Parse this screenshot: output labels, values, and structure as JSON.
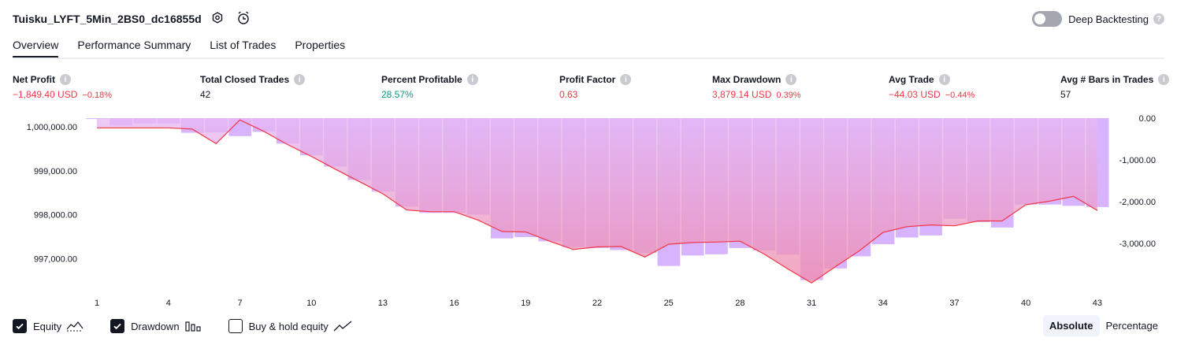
{
  "header": {
    "strategy_title": "Tuisku_LYFT_5Min_2BS0_dc16855d",
    "settings_icon": "settings-icon",
    "alert_icon": "alarm-add-icon",
    "deep_backtesting_label": "Deep Backtesting",
    "deep_backtesting_enabled": false
  },
  "tabs": [
    {
      "label": "Overview",
      "active": true
    },
    {
      "label": "Performance Summary",
      "active": false
    },
    {
      "label": "List of Trades",
      "active": false
    },
    {
      "label": "Properties",
      "active": false
    }
  ],
  "metrics": {
    "net_profit": {
      "label": "Net Profit",
      "value": "−1,849.40 USD",
      "pct": "−0.18%"
    },
    "total_closed_trades": {
      "label": "Total Closed Trades",
      "value": "42"
    },
    "percent_profitable": {
      "label": "Percent Profitable",
      "value": "28.57%"
    },
    "profit_factor": {
      "label": "Profit Factor",
      "value": "0.63"
    },
    "max_drawdown": {
      "label": "Max Drawdown",
      "value": "3,879.14 USD",
      "pct": "0.39%"
    },
    "avg_trade": {
      "label": "Avg Trade",
      "value": "−44.03 USD",
      "pct": "−0.44%"
    },
    "avg_bars": {
      "label": "Avg # Bars in Trades",
      "value": "57"
    }
  },
  "colors": {
    "negative": "#f23645",
    "positive": "#089981",
    "equity_line": "#f23645",
    "drawdown_bar": "#d1a7ff",
    "equity_fill_top": "#e6b8f5",
    "equity_fill_bottom": "#f08aa8"
  },
  "chart_data": {
    "type": "area",
    "x_ticks": [
      1,
      4,
      7,
      10,
      13,
      16,
      19,
      22,
      25,
      28,
      31,
      34,
      37,
      40,
      43
    ],
    "left_axis": {
      "ticks": [
        "1,000,000.00",
        "999,000.00",
        "998,000.00",
        "997,000.00"
      ],
      "ylim": [
        996400,
        1000200
      ]
    },
    "right_axis": {
      "ticks": [
        "0.00",
        "-1,000.00",
        "-2,000.00",
        "-3,000.00"
      ],
      "ylim": [
        -4000,
        0
      ]
    },
    "series": [
      {
        "name": "Equity",
        "x": [
          1,
          2,
          3,
          4,
          5,
          6,
          7,
          8,
          9,
          10,
          11,
          12,
          13,
          14,
          15,
          16,
          17,
          18,
          19,
          20,
          21,
          22,
          23,
          24,
          25,
          26,
          27,
          28,
          29,
          30,
          31,
          32,
          33,
          34,
          35,
          36,
          37,
          38,
          39,
          40,
          41,
          42,
          43
        ],
        "values": [
          999980,
          999980,
          999980,
          999980,
          999950,
          999620,
          1000160,
          999900,
          999600,
          999330,
          999040,
          998760,
          998480,
          998110,
          998070,
          998070,
          997880,
          997620,
          997610,
          997400,
          997210,
          997270,
          997280,
          997040,
          997330,
          997370,
          997380,
          997400,
          997110,
          996770,
          996450,
          996820,
          997180,
          997600,
          997730,
          997770,
          997750,
          997860,
          997860,
          998230,
          998310,
          998420,
          998100
        ],
        "color": "#f23645"
      },
      {
        "name": "Drawdown",
        "x": [
          1,
          2,
          3,
          4,
          5,
          6,
          7,
          8,
          9,
          10,
          11,
          12,
          13,
          14,
          15,
          16,
          17,
          18,
          19,
          20,
          21,
          22,
          23,
          24,
          25,
          26,
          27,
          28,
          29,
          30,
          31,
          32,
          33,
          34,
          35,
          36,
          37,
          38,
          39,
          40,
          41,
          42,
          43
        ],
        "values": [
          -20,
          -180,
          -130,
          -130,
          -350,
          -340,
          -430,
          -330,
          -610,
          -890,
          -1160,
          -1480,
          -1760,
          -2120,
          -2270,
          -2270,
          -2310,
          -2880,
          -2850,
          -2950,
          -3090,
          -3110,
          -3160,
          -3230,
          -3540,
          -3290,
          -3260,
          -3110,
          -3170,
          -3270,
          -3880,
          -3600,
          -3310,
          -3020,
          -2860,
          -2810,
          -2410,
          -2490,
          -2620,
          -2070,
          -2070,
          -2100,
          -2130
        ],
        "color": "#d1a7ff"
      }
    ]
  },
  "legend": [
    {
      "label": "Equity",
      "checked": true,
      "icon": "area-line-icon"
    },
    {
      "label": "Drawdown",
      "checked": true,
      "icon": "bars-icon"
    },
    {
      "label": "Buy & hold equity",
      "checked": false,
      "icon": "line-chart-icon"
    }
  ],
  "mode": {
    "absolute": "Absolute",
    "percentage": "Percentage",
    "selected": "Absolute"
  }
}
